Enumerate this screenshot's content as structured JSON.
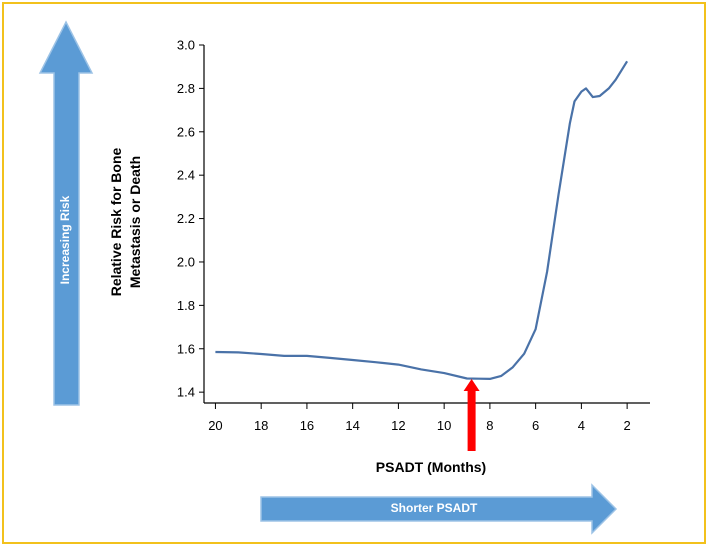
{
  "chart_data": {
    "type": "line",
    "xlabel": "PSADT (Months)",
    "ylabel_lines": [
      "Relative Risk for Bone",
      "Metastasis or Death"
    ],
    "ylim": [
      1.35,
      3.0
    ],
    "yticks": [
      "1.4",
      "1.6",
      "1.8",
      "2.0",
      "2.2",
      "2.4",
      "2.6",
      "2.8",
      "3.0"
    ],
    "xlim": [
      20.5,
      1.0
    ],
    "x_reversed": true,
    "xticks": [
      "20",
      "18",
      "16",
      "14",
      "12",
      "10",
      "8",
      "6",
      "4",
      "2"
    ],
    "grid": false,
    "series": [
      {
        "color": "#4a72a8",
        "x": [
          20,
          19,
          18,
          17,
          16,
          15,
          14,
          13,
          12,
          11,
          10,
          9,
          8.5,
          8,
          7.5,
          7,
          6.5,
          6,
          5.5,
          5,
          4.5,
          4.3,
          4,
          3.8,
          3.5,
          3.2,
          2.8,
          2.5,
          2
        ],
        "y": [
          1.585,
          1.583,
          1.576,
          1.567,
          1.567,
          1.558,
          1.548,
          1.538,
          1.527,
          1.505,
          1.488,
          1.463,
          1.462,
          1.461,
          1.475,
          1.515,
          1.577,
          1.69,
          1.955,
          2.31,
          2.64,
          2.74,
          2.785,
          2.8,
          2.76,
          2.765,
          2.8,
          2.84,
          2.925
        ]
      }
    ],
    "annotations": {
      "marker_x": 8.8,
      "marker_color": "#ff0000"
    }
  },
  "side_arrows": {
    "vertical_label": "Increasing Risk",
    "horizontal_label": "Shorter PSADT",
    "arrow_color": "#5b9bd5"
  },
  "frame_color": "#f2c11c"
}
